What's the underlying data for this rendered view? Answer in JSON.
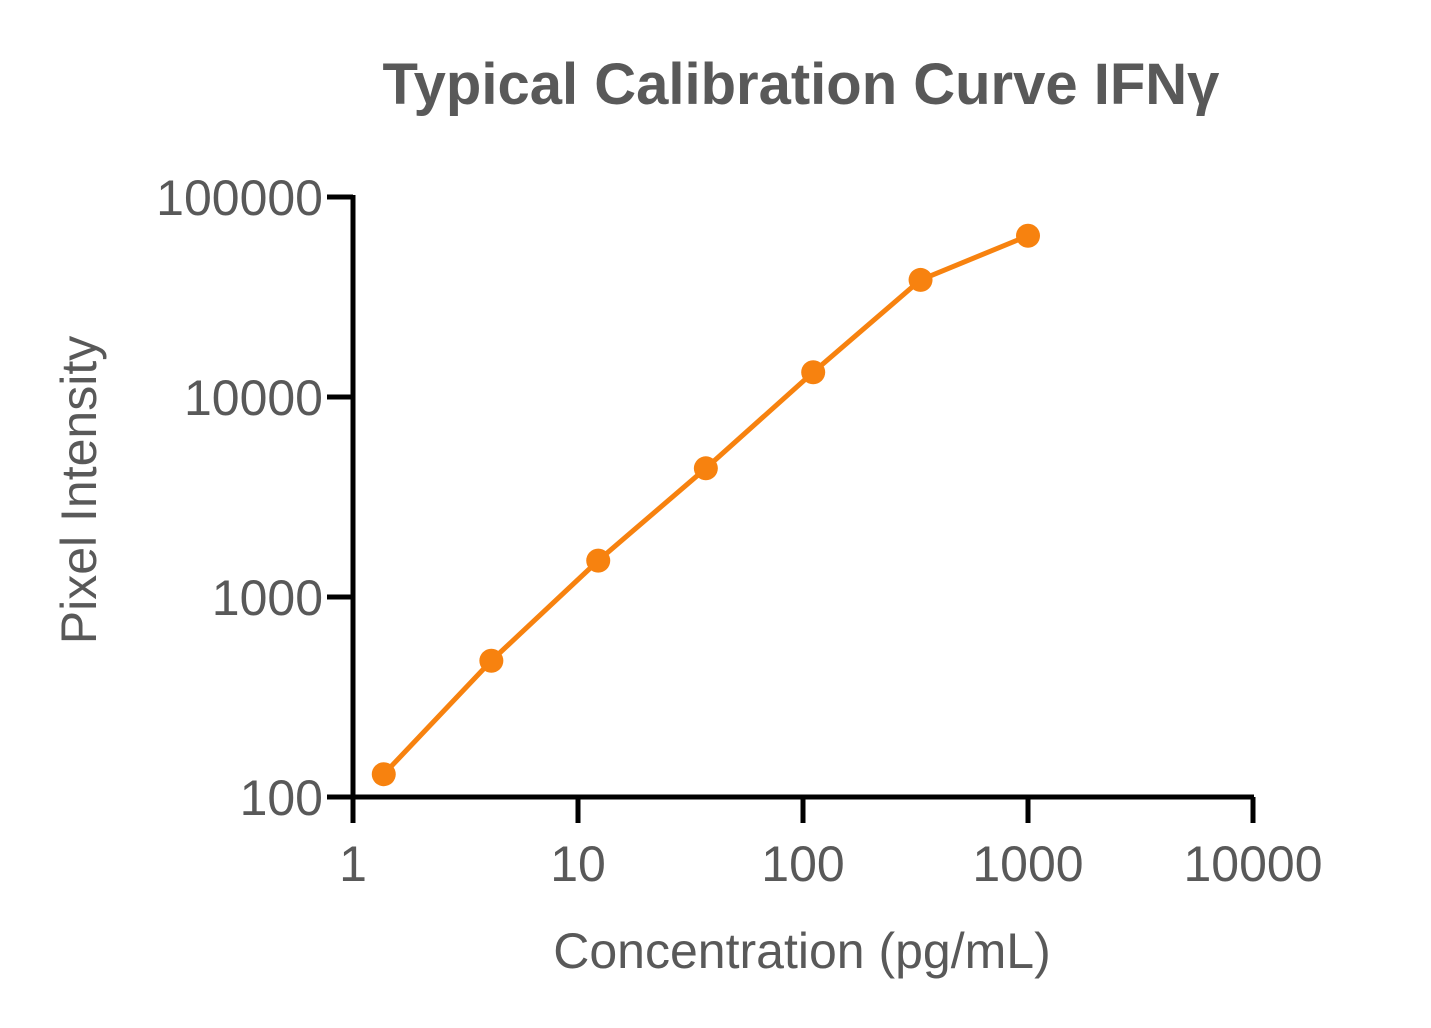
{
  "chart_data": {
    "type": "line",
    "title": "Typical Calibration Curve IFNγ",
    "xlabel": "Concentration (pg/mL)",
    "ylabel": "Pixel Intensity",
    "xscale": "log",
    "yscale": "log",
    "xlim": [
      1,
      10000
    ],
    "ylim": [
      100,
      100000
    ],
    "x_ticks": [
      "1",
      "10",
      "100",
      "1000",
      "10000"
    ],
    "y_ticks": [
      "100",
      "1000",
      "10000",
      "100000"
    ],
    "grid": false,
    "series": [
      {
        "color": "#F7820F",
        "marker": "circle",
        "x": [
          1.37,
          4.12,
          12.3,
          37.0,
          111,
          333,
          1000
        ],
        "y": [
          130,
          480,
          1520,
          4400,
          13300,
          38500,
          64000
        ]
      }
    ]
  }
}
